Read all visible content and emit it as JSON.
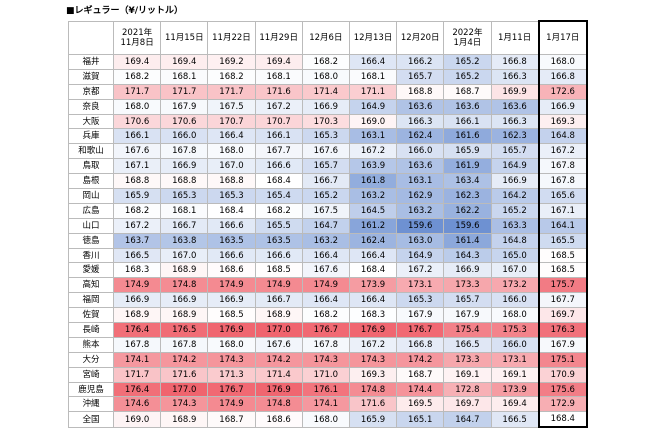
{
  "title": "■レギュラー（¥/リットル）",
  "table": {
    "header": [
      "",
      "2021年\n11月8日",
      "11月15日",
      "11月22日",
      "11月29日",
      "12月6日",
      "12月13日",
      "12月20日",
      "2022年\n1月4日",
      "1月11日",
      "1月17日"
    ],
    "rows": [
      [
        "福井",
        "169.4",
        "169.4",
        "169.2",
        "169.4",
        "168.2",
        "166.4",
        "166.2",
        "165.2",
        "166.8",
        "168.0"
      ],
      [
        "滋賀",
        "168.2",
        "168.1",
        "168.2",
        "168.1",
        "168.0",
        "168.1",
        "165.7",
        "165.2",
        "166.3",
        "166.8"
      ],
      [
        "京都",
        "171.7",
        "171.7",
        "171.7",
        "171.6",
        "171.4",
        "171.1",
        "168.8",
        "168.7",
        "169.9",
        "172.6"
      ],
      [
        "奈良",
        "168.0",
        "167.9",
        "167.5",
        "167.2",
        "166.9",
        "164.9",
        "163.6",
        "163.6",
        "163.6",
        "166.9"
      ],
      [
        "大阪",
        "170.6",
        "170.6",
        "170.7",
        "170.7",
        "170.3",
        "169.0",
        "166.3",
        "166.1",
        "166.3",
        "169.3"
      ],
      [
        "兵庫",
        "166.1",
        "166.0",
        "166.4",
        "166.1",
        "165.3",
        "163.1",
        "162.4",
        "161.6",
        "162.3",
        "164.8"
      ],
      [
        "和歌山",
        "167.6",
        "167.8",
        "168.0",
        "167.7",
        "167.6",
        "167.2",
        "166.0",
        "165.9",
        "165.7",
        "167.2"
      ],
      [
        "鳥取",
        "167.1",
        "166.9",
        "167.0",
        "166.6",
        "165.7",
        "163.9",
        "163.6",
        "161.9",
        "164.9",
        "167.8"
      ],
      [
        "島根",
        "168.8",
        "168.8",
        "168.8",
        "168.4",
        "166.7",
        "161.8",
        "163.1",
        "163.4",
        "166.9",
        "167.8"
      ],
      [
        "岡山",
        "165.9",
        "165.3",
        "165.3",
        "165.4",
        "165.2",
        "163.2",
        "162.9",
        "162.3",
        "164.2",
        "165.6"
      ],
      [
        "広島",
        "168.2",
        "168.1",
        "168.4",
        "168.2",
        "167.5",
        "164.5",
        "163.2",
        "162.2",
        "165.2",
        "167.1"
      ],
      [
        "山口",
        "167.2",
        "166.7",
        "166.6",
        "165.5",
        "164.7",
        "161.2",
        "159.6",
        "159.6",
        "163.3",
        "164.1"
      ],
      [
        "徳島",
        "163.7",
        "163.8",
        "163.5",
        "163.5",
        "163.2",
        "162.4",
        "163.0",
        "161.4",
        "164.8",
        "165.5"
      ],
      [
        "香川",
        "166.5",
        "167.0",
        "166.6",
        "166.6",
        "166.4",
        "166.4",
        "164.9",
        "164.3",
        "165.0",
        "168.5"
      ],
      [
        "愛媛",
        "168.3",
        "168.9",
        "168.6",
        "168.5",
        "167.6",
        "168.4",
        "167.2",
        "166.9",
        "167.0",
        "168.5"
      ],
      [
        "高知",
        "174.9",
        "174.8",
        "174.9",
        "174.9",
        "174.9",
        "173.9",
        "173.1",
        "173.3",
        "173.2",
        "175.7"
      ],
      [
        "福岡",
        "166.9",
        "166.9",
        "166.9",
        "166.7",
        "166.4",
        "166.4",
        "165.3",
        "165.7",
        "166.0",
        "167.7"
      ],
      [
        "佐賀",
        "168.9",
        "168.9",
        "168.5",
        "168.9",
        "168.2",
        "168.3",
        "167.9",
        "167.9",
        "168.0",
        "169.7"
      ],
      [
        "長崎",
        "176.4",
        "176.5",
        "176.9",
        "177.0",
        "176.7",
        "176.9",
        "176.7",
        "175.4",
        "175.3",
        "176.3"
      ],
      [
        "熊本",
        "167.8",
        "167.8",
        "168.0",
        "167.6",
        "167.8",
        "167.2",
        "166.8",
        "166.5",
        "166.0",
        "167.9"
      ],
      [
        "大分",
        "174.1",
        "174.2",
        "174.3",
        "174.2",
        "174.3",
        "174.3",
        "174.2",
        "173.3",
        "173.1",
        "175.1"
      ],
      [
        "宮崎",
        "171.7",
        "171.6",
        "171.3",
        "171.4",
        "171.0",
        "169.3",
        "168.7",
        "169.1",
        "169.1",
        "170.9"
      ],
      [
        "鹿児島",
        "176.4",
        "177.0",
        "176.7",
        "176.9",
        "176.1",
        "174.8",
        "174.4",
        "172.8",
        "173.9",
        "175.6"
      ],
      [
        "沖縄",
        "174.6",
        "174.3",
        "174.9",
        "174.8",
        "174.1",
        "171.6",
        "169.5",
        "169.7",
        "169.4",
        "172.9"
      ],
      [
        "全国",
        "169.0",
        "168.9",
        "168.7",
        "168.6",
        "168.0",
        "165.9",
        "165.1",
        "164.7",
        "166.5",
        "168.4"
      ]
    ]
  }
}
